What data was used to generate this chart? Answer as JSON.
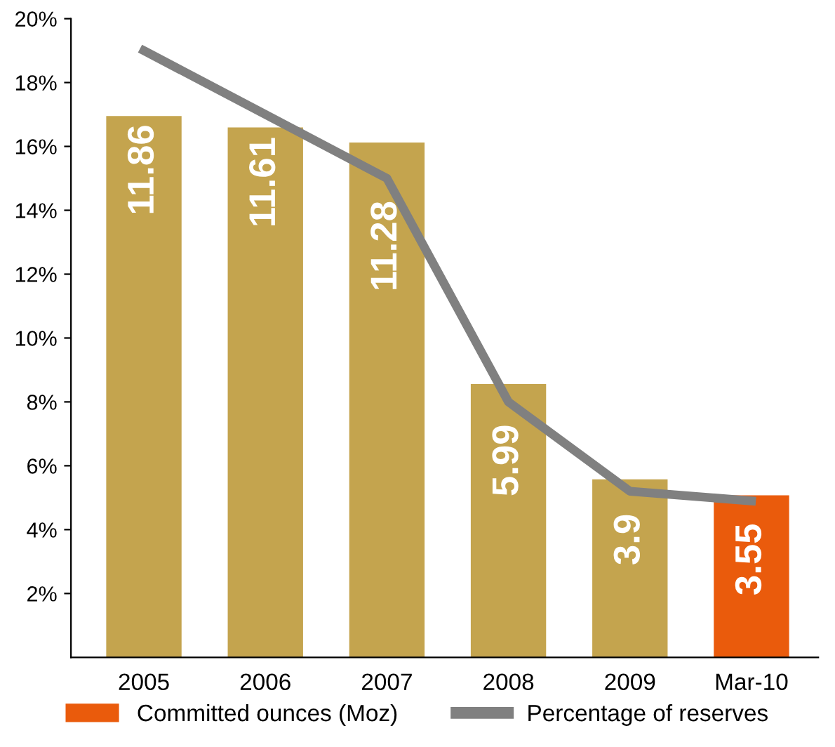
{
  "chart_data": {
    "type": "bar",
    "categories": [
      "2005",
      "2006",
      "2007",
      "2008",
      "2009",
      "Mar-10"
    ],
    "series": [
      {
        "name": "Committed ounces (Moz)",
        "type": "bar",
        "axis": "y2",
        "color": "#ea5b0c",
        "colors": [
          "#c4a44e",
          "#c4a44e",
          "#c4a44e",
          "#c4a44e",
          "#c4a44e",
          "#ea5b0c"
        ],
        "values": [
          11.86,
          11.61,
          11.28,
          5.99,
          3.9,
          3.55
        ],
        "data_labels": true
      },
      {
        "name": "Percentage of reserves",
        "type": "line",
        "color": "#808080",
        "values": [
          19,
          17,
          15,
          8,
          5.2,
          4.9
        ],
        "marker": "none",
        "line_style": "solid"
      }
    ],
    "ylim": [
      0,
      20
    ],
    "yticks": [
      {
        "value": 2,
        "label": "2%"
      },
      {
        "value": 4,
        "label": "4%"
      },
      {
        "value": 6,
        "label": "6%"
      },
      {
        "value": 8,
        "label": "8%"
      },
      {
        "value": 10,
        "label": "10%"
      },
      {
        "value": 12,
        "label": "12%"
      },
      {
        "value": 14,
        "label": "14%"
      },
      {
        "value": 16,
        "label": "16%"
      },
      {
        "value": 18,
        "label": "18%"
      },
      {
        "value": 20,
        "label": "20%"
      }
    ],
    "grid": false,
    "legend": "bottom"
  }
}
